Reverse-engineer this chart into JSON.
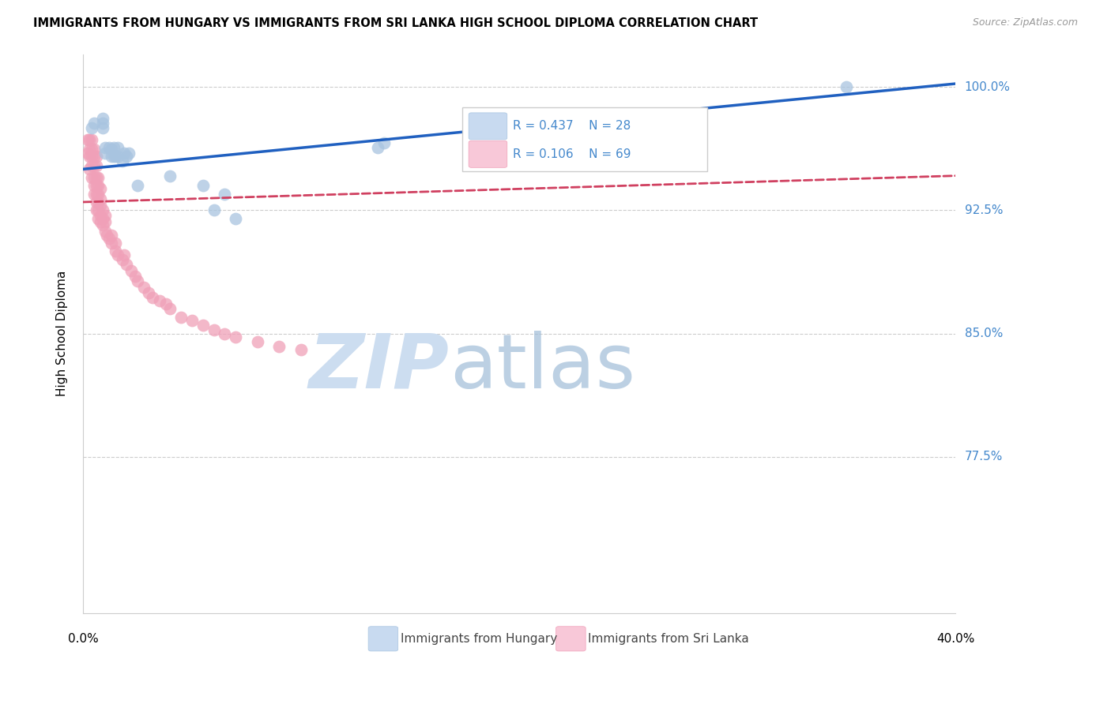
{
  "title": "IMMIGRANTS FROM HUNGARY VS IMMIGRANTS FROM SRI LANKA HIGH SCHOOL DIPLOMA CORRELATION CHART",
  "source": "Source: ZipAtlas.com",
  "ylabel": "High School Diploma",
  "ytick_labels": [
    "100.0%",
    "92.5%",
    "85.0%",
    "77.5%"
  ],
  "ytick_values": [
    1.0,
    0.925,
    0.85,
    0.775
  ],
  "xlim": [
    0.0,
    0.4
  ],
  "ylim": [
    0.68,
    1.02
  ],
  "hungary_color": "#a8c4e0",
  "srilanka_color": "#f0a0b8",
  "hungary_line_color": "#2060c0",
  "srilanka_line_color": "#d04060",
  "hungary_x": [
    0.004,
    0.005,
    0.009,
    0.009,
    0.009,
    0.01,
    0.01,
    0.012,
    0.013,
    0.013,
    0.014,
    0.014,
    0.015,
    0.016,
    0.016,
    0.018,
    0.019,
    0.02,
    0.021,
    0.025,
    0.04,
    0.055,
    0.06,
    0.065,
    0.07,
    0.135,
    0.138,
    0.35
  ],
  "hungary_y": [
    0.975,
    0.978,
    0.975,
    0.978,
    0.981,
    0.96,
    0.963,
    0.963,
    0.958,
    0.962,
    0.958,
    0.963,
    0.958,
    0.963,
    0.958,
    0.955,
    0.96,
    0.958,
    0.96,
    0.94,
    0.946,
    0.94,
    0.925,
    0.935,
    0.92,
    0.963,
    0.966,
    1.0
  ],
  "srilanka_x": [
    0.002,
    0.002,
    0.003,
    0.003,
    0.003,
    0.003,
    0.004,
    0.004,
    0.004,
    0.004,
    0.004,
    0.005,
    0.005,
    0.005,
    0.005,
    0.005,
    0.005,
    0.006,
    0.006,
    0.006,
    0.006,
    0.006,
    0.006,
    0.006,
    0.007,
    0.007,
    0.007,
    0.007,
    0.007,
    0.007,
    0.008,
    0.008,
    0.008,
    0.008,
    0.008,
    0.009,
    0.009,
    0.009,
    0.01,
    0.01,
    0.01,
    0.011,
    0.012,
    0.013,
    0.013,
    0.015,
    0.015,
    0.016,
    0.018,
    0.019,
    0.02,
    0.022,
    0.024,
    0.025,
    0.028,
    0.03,
    0.032,
    0.035,
    0.038,
    0.04,
    0.045,
    0.05,
    0.055,
    0.06,
    0.065,
    0.07,
    0.08,
    0.09,
    0.1
  ],
  "srilanka_y": [
    0.96,
    0.968,
    0.95,
    0.958,
    0.962,
    0.968,
    0.945,
    0.952,
    0.958,
    0.962,
    0.968,
    0.935,
    0.94,
    0.945,
    0.952,
    0.958,
    0.962,
    0.925,
    0.93,
    0.935,
    0.94,
    0.945,
    0.952,
    0.958,
    0.92,
    0.925,
    0.93,
    0.935,
    0.94,
    0.945,
    0.918,
    0.922,
    0.928,
    0.932,
    0.938,
    0.916,
    0.92,
    0.925,
    0.912,
    0.918,
    0.922,
    0.91,
    0.908,
    0.905,
    0.91,
    0.9,
    0.905,
    0.898,
    0.895,
    0.898,
    0.892,
    0.888,
    0.885,
    0.882,
    0.878,
    0.875,
    0.872,
    0.87,
    0.868,
    0.865,
    0.86,
    0.858,
    0.855,
    0.852,
    0.85,
    0.848,
    0.845,
    0.842,
    0.84
  ],
  "background_color": "#ffffff",
  "grid_color": "#cccccc",
  "hungary_trend_x": [
    0.0,
    0.4
  ],
  "hungary_trend_y_intercept": 0.95,
  "hungary_trend_slope": 0.13,
  "srilanka_trend_y_intercept": 0.93,
  "srilanka_trend_slope": 0.04
}
